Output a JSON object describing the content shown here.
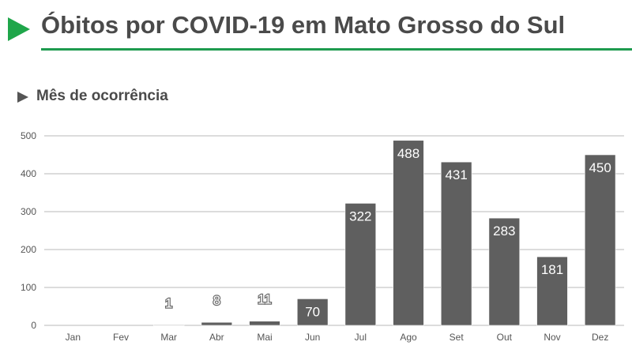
{
  "header": {
    "title": "Óbitos por COVID-19 em Mato Grosso do Sul",
    "accent": "#1fa64a"
  },
  "section": {
    "title": "Mês de ocorrência"
  },
  "chart_data": {
    "type": "bar",
    "categories": [
      "Jan",
      "Fev",
      "Mar",
      "Abr",
      "Mai",
      "Jun",
      "Jul",
      "Ago",
      "Set",
      "Out",
      "Nov",
      "Dez"
    ],
    "values": [
      0,
      0,
      1,
      8,
      11,
      70,
      322,
      488,
      431,
      283,
      181,
      450
    ],
    "data_labels": [
      "",
      "",
      "1",
      "8",
      "11",
      "70",
      "322",
      "488",
      "431",
      "283",
      "181",
      "450"
    ],
    "ylim": [
      0,
      500
    ],
    "yticks": [
      0,
      100,
      200,
      300,
      400,
      500
    ],
    "grid": true,
    "bar_color": "#5f5f5f"
  }
}
